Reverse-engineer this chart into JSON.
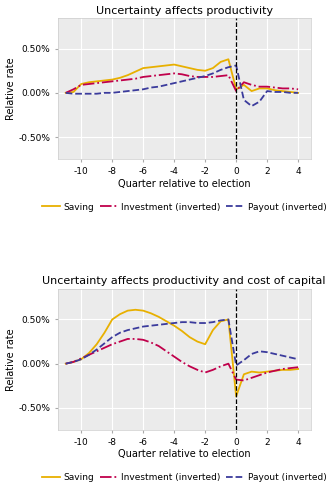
{
  "title1": "Uncertainty affects productivity",
  "title2": "Uncertainty affects productivity and cost of capital",
  "xlabel": "Quarter relative to election",
  "ylabel": "Relative rate",
  "xlim": [
    -11.5,
    4.8
  ],
  "ylim": [
    -0.75,
    0.85
  ],
  "xticks": [
    -10,
    -8,
    -6,
    -4,
    -2,
    0,
    2,
    4
  ],
  "yticks": [
    -0.5,
    0.0,
    0.5
  ],
  "ytick_labels": [
    "-0.50%",
    "0.00%",
    "0.50%"
  ],
  "vline_x": 0,
  "colors": {
    "saving": "#E8B000",
    "investment": "#C0004B",
    "payout": "#3B3B9C"
  },
  "panel1": {
    "quarters": [
      -11,
      -10.5,
      -10,
      -9.5,
      -9,
      -8.5,
      -8,
      -7.5,
      -7,
      -6.5,
      -6,
      -5.5,
      -5,
      -4.5,
      -4,
      -3.5,
      -3,
      -2.5,
      -2,
      -1.5,
      -1,
      -0.5,
      0,
      0.5,
      1,
      1.5,
      2,
      2.5,
      3,
      3.5,
      4
    ],
    "saving": [
      0.0,
      0.01,
      0.1,
      0.12,
      0.13,
      0.14,
      0.15,
      0.17,
      0.2,
      0.24,
      0.28,
      0.29,
      0.3,
      0.31,
      0.32,
      0.3,
      0.28,
      0.26,
      0.25,
      0.28,
      0.35,
      0.38,
      0.04,
      0.09,
      0.02,
      0.05,
      0.05,
      0.03,
      0.02,
      0.01,
      0.0
    ],
    "investment": [
      0.0,
      0.04,
      0.09,
      0.1,
      0.11,
      0.12,
      0.13,
      0.14,
      0.15,
      0.16,
      0.18,
      0.19,
      0.2,
      0.21,
      0.22,
      0.21,
      0.19,
      0.18,
      0.18,
      0.18,
      0.19,
      0.2,
      0.02,
      0.12,
      0.09,
      0.07,
      0.07,
      0.06,
      0.05,
      0.05,
      0.04
    ],
    "payout": [
      0.0,
      -0.01,
      -0.01,
      -0.01,
      -0.01,
      0.0,
      0.0,
      0.01,
      0.02,
      0.03,
      0.04,
      0.06,
      0.07,
      0.09,
      0.11,
      0.13,
      0.15,
      0.17,
      0.19,
      0.22,
      0.26,
      0.29,
      0.31,
      -0.08,
      -0.15,
      -0.1,
      0.02,
      0.01,
      0.01,
      0.0,
      0.0
    ]
  },
  "panel2": {
    "quarters": [
      -11,
      -10.5,
      -10,
      -9.5,
      -9,
      -8.5,
      -8,
      -7.5,
      -7,
      -6.5,
      -6,
      -5.5,
      -5,
      -4.5,
      -4,
      -3.5,
      -3,
      -2.5,
      -2,
      -1.5,
      -1,
      -0.5,
      0,
      0.5,
      1,
      1.5,
      2,
      2.5,
      3,
      3.5,
      4
    ],
    "saving": [
      0.0,
      0.02,
      0.05,
      0.12,
      0.22,
      0.35,
      0.5,
      0.56,
      0.6,
      0.61,
      0.6,
      0.57,
      0.53,
      0.48,
      0.43,
      0.37,
      0.3,
      0.25,
      0.22,
      0.38,
      0.48,
      0.5,
      -0.37,
      -0.12,
      -0.09,
      -0.1,
      -0.09,
      -0.08,
      -0.07,
      -0.07,
      -0.06
    ],
    "investment": [
      0.0,
      0.02,
      0.06,
      0.1,
      0.14,
      0.18,
      0.22,
      0.25,
      0.28,
      0.28,
      0.27,
      0.24,
      0.2,
      0.14,
      0.08,
      0.02,
      -0.03,
      -0.07,
      -0.1,
      -0.07,
      -0.03,
      0.0,
      -0.18,
      -0.19,
      -0.16,
      -0.13,
      -0.1,
      -0.08,
      -0.06,
      -0.05,
      -0.04
    ],
    "payout": [
      0.0,
      0.02,
      0.05,
      0.1,
      0.16,
      0.23,
      0.3,
      0.35,
      0.38,
      0.4,
      0.42,
      0.43,
      0.44,
      0.45,
      0.46,
      0.47,
      0.47,
      0.46,
      0.46,
      0.47,
      0.49,
      0.5,
      -0.02,
      0.04,
      0.11,
      0.14,
      0.13,
      0.11,
      0.09,
      0.07,
      0.05
    ]
  },
  "legend": [
    {
      "label": "Saving",
      "color": "#E8B000",
      "linestyle": "-"
    },
    {
      "label": "Investment (inverted)",
      "color": "#C0004B",
      "linestyle": "-."
    },
    {
      "label": "Payout (inverted)",
      "color": "#3B3B9C",
      "linestyle": "--"
    }
  ],
  "bg_color": "#EBEBEB",
  "grid_color": "#FFFFFF",
  "title_fontsize": 8.0,
  "axis_label_fontsize": 7.0,
  "tick_fontsize": 6.5,
  "legend_fontsize": 6.5
}
